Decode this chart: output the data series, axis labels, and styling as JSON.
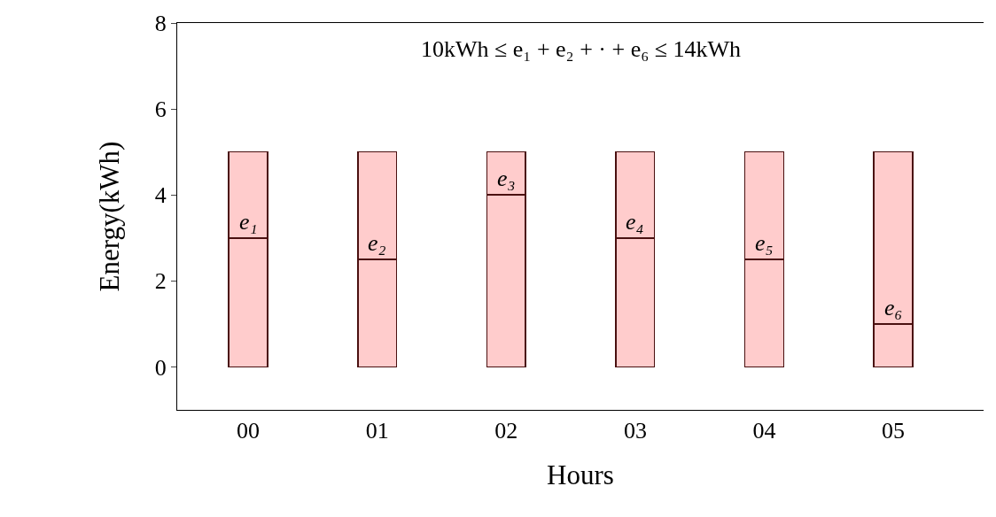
{
  "chart_data": {
    "type": "bar",
    "stacked": true,
    "xlabel": "Hours",
    "ylabel": "Energy(kWh)",
    "categories": [
      "00",
      "01",
      "02",
      "03",
      "04",
      "05"
    ],
    "series": [
      {
        "color": "#ffcccc",
        "values": [
          3,
          2.5,
          4,
          3,
          2.5,
          1
        ]
      },
      {
        "color": "#ffcccc",
        "values": [
          2,
          2.5,
          1,
          2,
          2.5,
          4
        ]
      }
    ],
    "ylim": [
      -1,
      8
    ],
    "yticks": [
      0,
      2,
      4,
      6,
      8
    ],
    "annotations": [
      "10kWh ≤ e₁ + e₂ + · + e₆ ≤ 14kWh",
      {
        "text": "e₁",
        "x": "00",
        "y": 3
      },
      {
        "text": "e₂",
        "x": "01",
        "y": 2.5
      },
      {
        "text": "e₃",
        "x": "02",
        "y": 4
      },
      {
        "text": "e₄",
        "x": "03",
        "y": 3
      },
      {
        "text": "e₅",
        "x": "04",
        "y": 2.5
      },
      {
        "text": "e₆",
        "x": "05",
        "y": 1
      }
    ]
  }
}
